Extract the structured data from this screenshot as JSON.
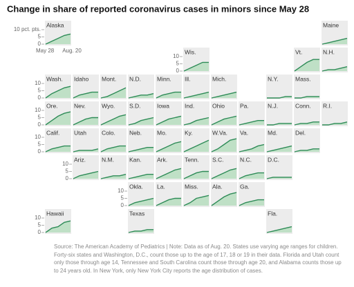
{
  "chart_data": {
    "type": "tile-area",
    "title": "Change in share of reported coronavirus cases in minors since May 28",
    "x": [
      "May 28",
      null,
      null,
      null,
      "Aug. 20"
    ],
    "ylim": [
      0,
      10
    ],
    "yticks": [
      0,
      5,
      10
    ],
    "first_tile_yticks": [
      0,
      5,
      {
        "value": 10,
        "label": "10 pct. pts."
      }
    ],
    "color": "#2e8b57",
    "fill": "#bfe0c6",
    "source": "Source: The American Academy of Pediatrics | Note: Data as of Aug. 20. States use varying age ranges for children. Forty-six states and Washington, D.C., count those up to the age of 17, 18 or 19 in their data. Florida and Utah count only those through age 14, Tennessee and South Carolina count those through age 20, and Alabama counts those up to 24 years old. In New York, only New York City reports the age distribution of cases.",
    "series": [
      {
        "name": "Alaska",
        "values": [
          0,
          2,
          4,
          6,
          7
        ]
      },
      {
        "name": "Maine",
        "values": [
          0,
          1,
          2,
          3,
          4
        ]
      },
      {
        "name": "Wis.",
        "values": [
          0,
          2,
          4,
          6,
          6
        ]
      },
      {
        "name": "Vt.",
        "values": [
          0,
          3,
          6,
          8,
          8
        ]
      },
      {
        "name": "N.H.",
        "values": [
          0,
          1,
          1,
          2,
          3
        ]
      },
      {
        "name": "Wash.",
        "values": [
          0,
          3,
          5,
          7,
          8
        ]
      },
      {
        "name": "Idaho",
        "values": [
          0,
          2,
          3,
          4,
          4
        ]
      },
      {
        "name": "Mont.",
        "values": [
          0,
          1,
          3,
          5,
          7
        ]
      },
      {
        "name": "N.D.",
        "values": [
          0,
          1,
          2,
          2,
          3
        ]
      },
      {
        "name": "Minn.",
        "values": [
          0,
          2,
          3,
          4,
          4
        ]
      },
      {
        "name": "Ill.",
        "values": [
          0,
          1,
          2,
          3,
          4
        ]
      },
      {
        "name": "Mich.",
        "values": [
          0,
          1,
          2,
          3,
          4
        ]
      },
      {
        "name": "N.Y.",
        "values": [
          0,
          0,
          0,
          1,
          1
        ]
      },
      {
        "name": "Mass.",
        "values": [
          0,
          0,
          1,
          1,
          1
        ]
      },
      {
        "name": "Ore.",
        "values": [
          0,
          3,
          6,
          8,
          9
        ]
      },
      {
        "name": "Nev.",
        "values": [
          0,
          2,
          4,
          5,
          5
        ]
      },
      {
        "name": "Wyo.",
        "values": [
          0,
          2,
          4,
          6,
          7
        ]
      },
      {
        "name": "S.D.",
        "values": [
          0,
          1,
          3,
          4,
          5
        ]
      },
      {
        "name": "Iowa",
        "values": [
          0,
          2,
          4,
          5,
          6
        ]
      },
      {
        "name": "Ind.",
        "values": [
          0,
          1,
          3,
          4,
          5
        ]
      },
      {
        "name": "Ohio",
        "values": [
          0,
          2,
          4,
          5,
          6
        ]
      },
      {
        "name": "Pa.",
        "values": [
          0,
          1,
          2,
          3,
          3
        ]
      },
      {
        "name": "N.J.",
        "values": [
          0,
          0,
          1,
          1,
          1
        ]
      },
      {
        "name": "Conn.",
        "values": [
          0,
          1,
          1,
          2,
          2
        ]
      },
      {
        "name": "R.I.",
        "values": [
          0,
          0,
          1,
          1,
          2
        ]
      },
      {
        "name": "Calif.",
        "values": [
          0,
          2,
          3,
          4,
          4
        ]
      },
      {
        "name": "Utah",
        "values": [
          0,
          1,
          1,
          1,
          2
        ]
      },
      {
        "name": "Colo.",
        "values": [
          0,
          2,
          3,
          4,
          4
        ]
      },
      {
        "name": "Neb.",
        "values": [
          0,
          1,
          2,
          3,
          3
        ]
      },
      {
        "name": "Mo.",
        "values": [
          0,
          2,
          4,
          6,
          7
        ]
      },
      {
        "name": "Ky.",
        "values": [
          0,
          2,
          4,
          6,
          8
        ]
      },
      {
        "name": "W.Va.",
        "values": [
          0,
          2,
          5,
          8,
          9
        ]
      },
      {
        "name": "Va.",
        "values": [
          0,
          1,
          2,
          4,
          5
        ]
      },
      {
        "name": "Md.",
        "values": [
          0,
          1,
          2,
          3,
          4
        ]
      },
      {
        "name": "Del.",
        "values": [
          0,
          1,
          1,
          2,
          2
        ]
      },
      {
        "name": "Ariz.",
        "values": [
          0,
          2,
          3,
          4,
          5
        ]
      },
      {
        "name": "N.M.",
        "values": [
          0,
          1,
          2,
          2,
          3
        ]
      },
      {
        "name": "Kan.",
        "values": [
          0,
          1,
          2,
          3,
          3
        ]
      },
      {
        "name": "Ark.",
        "values": [
          0,
          2,
          4,
          6,
          7
        ]
      },
      {
        "name": "Tenn.",
        "values": [
          0,
          2,
          4,
          5,
          5
        ]
      },
      {
        "name": "S.C.",
        "values": [
          0,
          2,
          4,
          6,
          7
        ]
      },
      {
        "name": "N.C.",
        "values": [
          0,
          2,
          3,
          4,
          4
        ]
      },
      {
        "name": "D.C.",
        "values": [
          0,
          1,
          1,
          1,
          1
        ]
      },
      {
        "name": "Okla.",
        "values": [
          0,
          2,
          3,
          4,
          5
        ]
      },
      {
        "name": "La.",
        "values": [
          0,
          2,
          4,
          5,
          5
        ]
      },
      {
        "name": "Miss.",
        "values": [
          0,
          2,
          5,
          6,
          7
        ]
      },
      {
        "name": "Ala.",
        "values": [
          0,
          3,
          6,
          8,
          9
        ]
      },
      {
        "name": "Ga.",
        "values": [
          0,
          2,
          3,
          4,
          4
        ]
      },
      {
        "name": "Hawaii",
        "values": [
          0,
          3,
          4,
          7,
          8
        ]
      },
      {
        "name": "Texas",
        "values": [
          0,
          1,
          1,
          2,
          2
        ]
      },
      {
        "name": "Fla.",
        "values": [
          0,
          1,
          2,
          3,
          4
        ]
      }
    ]
  }
}
